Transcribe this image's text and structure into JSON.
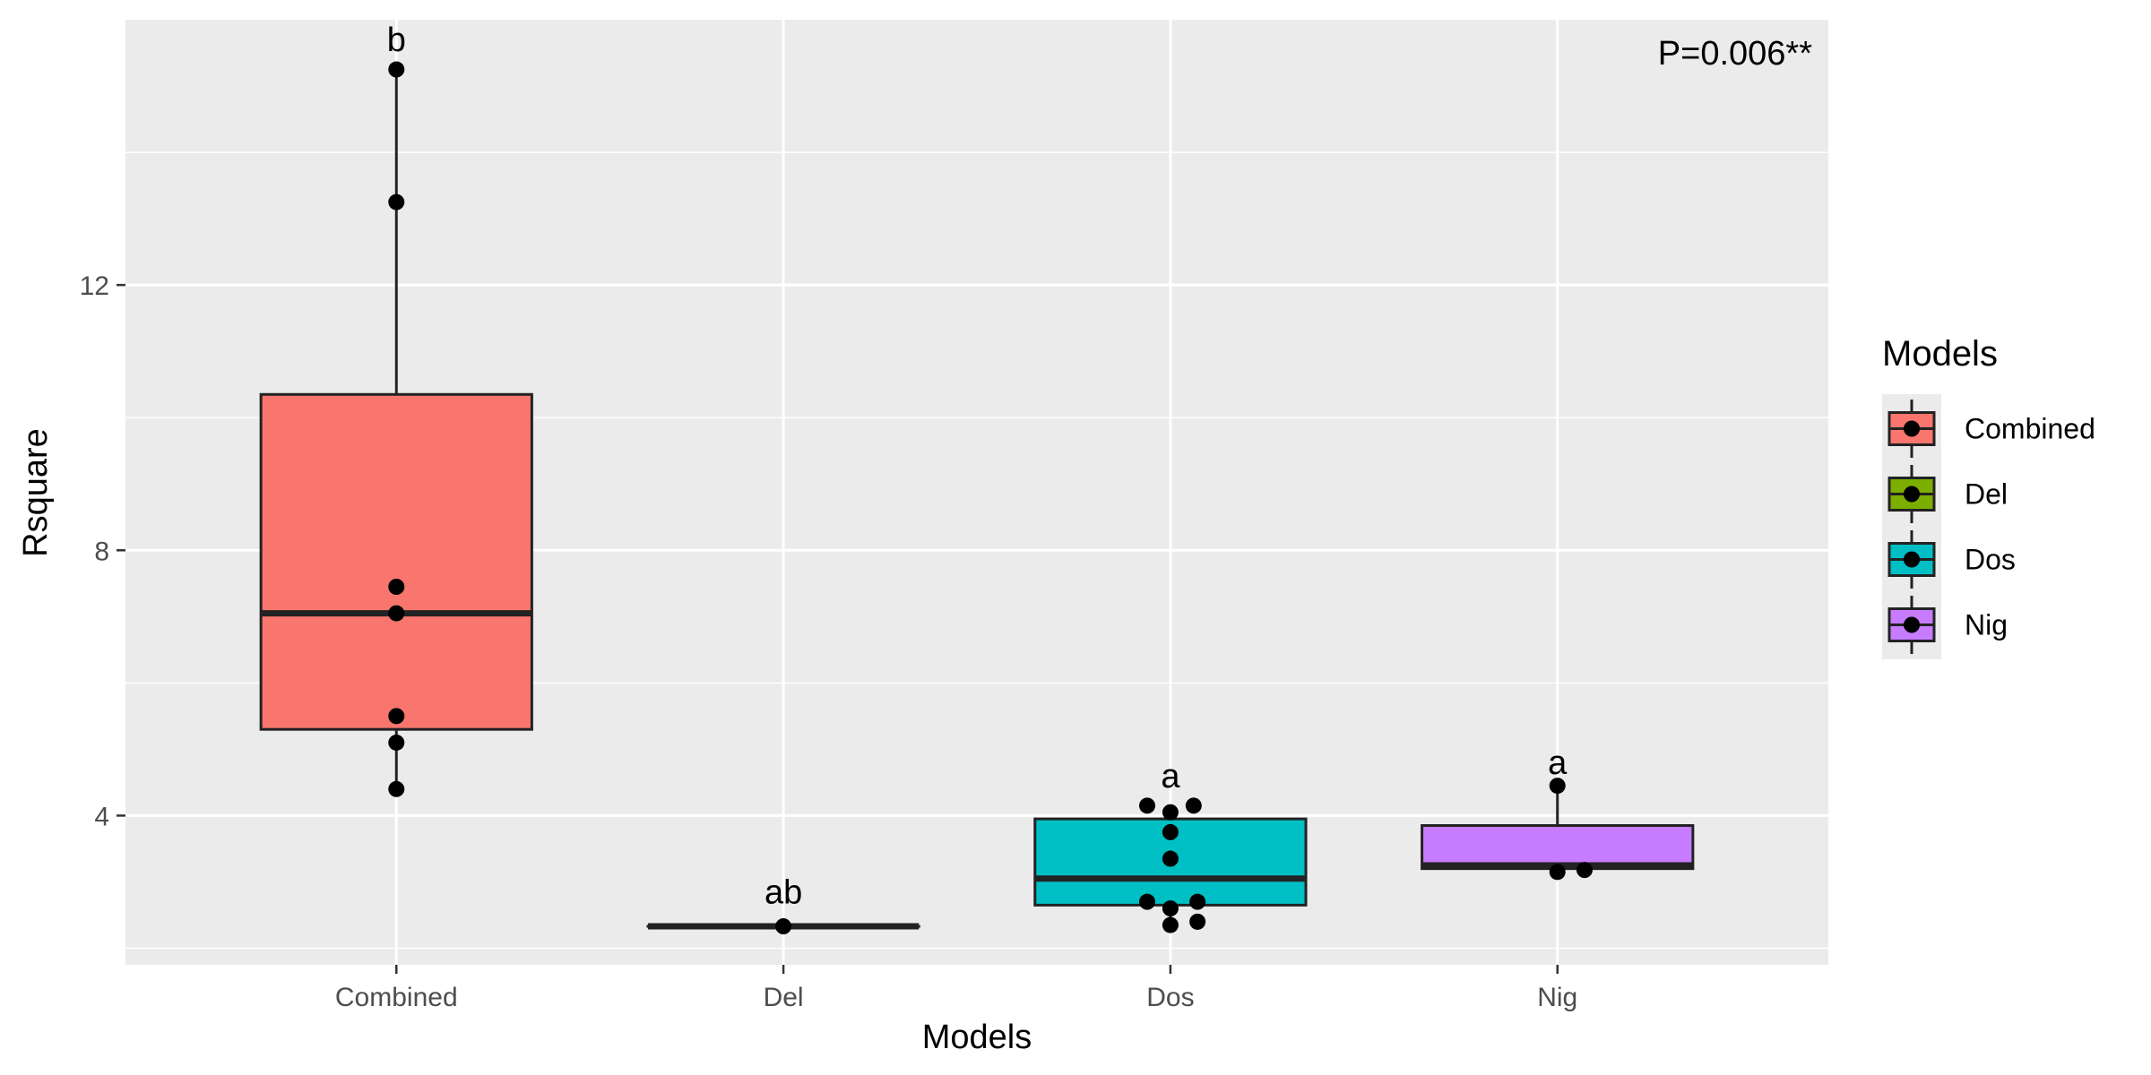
{
  "chart_data": {
    "type": "boxplot",
    "xlabel": "Models",
    "ylabel": "Rsquare",
    "categories": [
      "Combined",
      "Del",
      "Dos",
      "Nig"
    ],
    "ylim": [
      1.75,
      16.0
    ],
    "yticks": [
      4,
      8,
      12
    ],
    "grid": true,
    "annotation": "P=0.006**",
    "legend": {
      "title": "Models",
      "position": "right",
      "entries": [
        "Combined",
        "Del",
        "Dos",
        "Nig"
      ]
    },
    "boxes": [
      {
        "name": "Combined",
        "color": "#F8766D",
        "q1": 5.3,
        "median": 7.05,
        "q3": 10.35,
        "whisker_low": 4.4,
        "whisker_high": 15.25,
        "letter": "b",
        "letter_y": 15.7
      },
      {
        "name": "Del",
        "color": "#7CAE00",
        "q1": 2.33,
        "median": 2.33,
        "q3": 2.33,
        "whisker_low": 2.33,
        "whisker_high": 2.33,
        "letter": "ab",
        "letter_y": 2.85
      },
      {
        "name": "Dos",
        "color": "#00BFC4",
        "q1": 2.65,
        "median": 3.05,
        "q3": 3.95,
        "whisker_low": 2.35,
        "whisker_high": 4.15,
        "letter": "a",
        "letter_y": 4.6
      },
      {
        "name": "Nig",
        "color": "#C77CFF",
        "q1": 3.2,
        "median": 3.25,
        "q3": 3.85,
        "whisker_low": 3.15,
        "whisker_high": 4.45,
        "letter": "a",
        "letter_y": 4.8
      }
    ],
    "points": [
      {
        "group": "Combined",
        "dx": 0,
        "y": 15.25
      },
      {
        "group": "Combined",
        "dx": 0,
        "y": 13.25
      },
      {
        "group": "Combined",
        "dx": 0,
        "y": 7.45
      },
      {
        "group": "Combined",
        "dx": 0,
        "y": 7.05
      },
      {
        "group": "Combined",
        "dx": 0,
        "y": 5.5
      },
      {
        "group": "Combined",
        "dx": 0,
        "y": 5.1
      },
      {
        "group": "Combined",
        "dx": 0,
        "y": 4.4
      },
      {
        "group": "Del",
        "dx": 0,
        "y": 2.33
      },
      {
        "group": "Dos",
        "dx": -0.06,
        "y": 4.15
      },
      {
        "group": "Dos",
        "dx": 0.0,
        "y": 4.05
      },
      {
        "group": "Dos",
        "dx": 0.06,
        "y": 4.15
      },
      {
        "group": "Dos",
        "dx": 0.0,
        "y": 3.75
      },
      {
        "group": "Dos",
        "dx": 0.0,
        "y": 3.35
      },
      {
        "group": "Dos",
        "dx": -0.06,
        "y": 2.7
      },
      {
        "group": "Dos",
        "dx": 0.07,
        "y": 2.7
      },
      {
        "group": "Dos",
        "dx": 0.0,
        "y": 2.6
      },
      {
        "group": "Dos",
        "dx": 0.0,
        "y": 2.35
      },
      {
        "group": "Dos",
        "dx": 0.07,
        "y": 2.4
      },
      {
        "group": "Nig",
        "dx": 0.0,
        "y": 4.45
      },
      {
        "group": "Nig",
        "dx": 0.0,
        "y": 3.15
      },
      {
        "group": "Nig",
        "dx": 0.07,
        "y": 3.18
      }
    ]
  }
}
